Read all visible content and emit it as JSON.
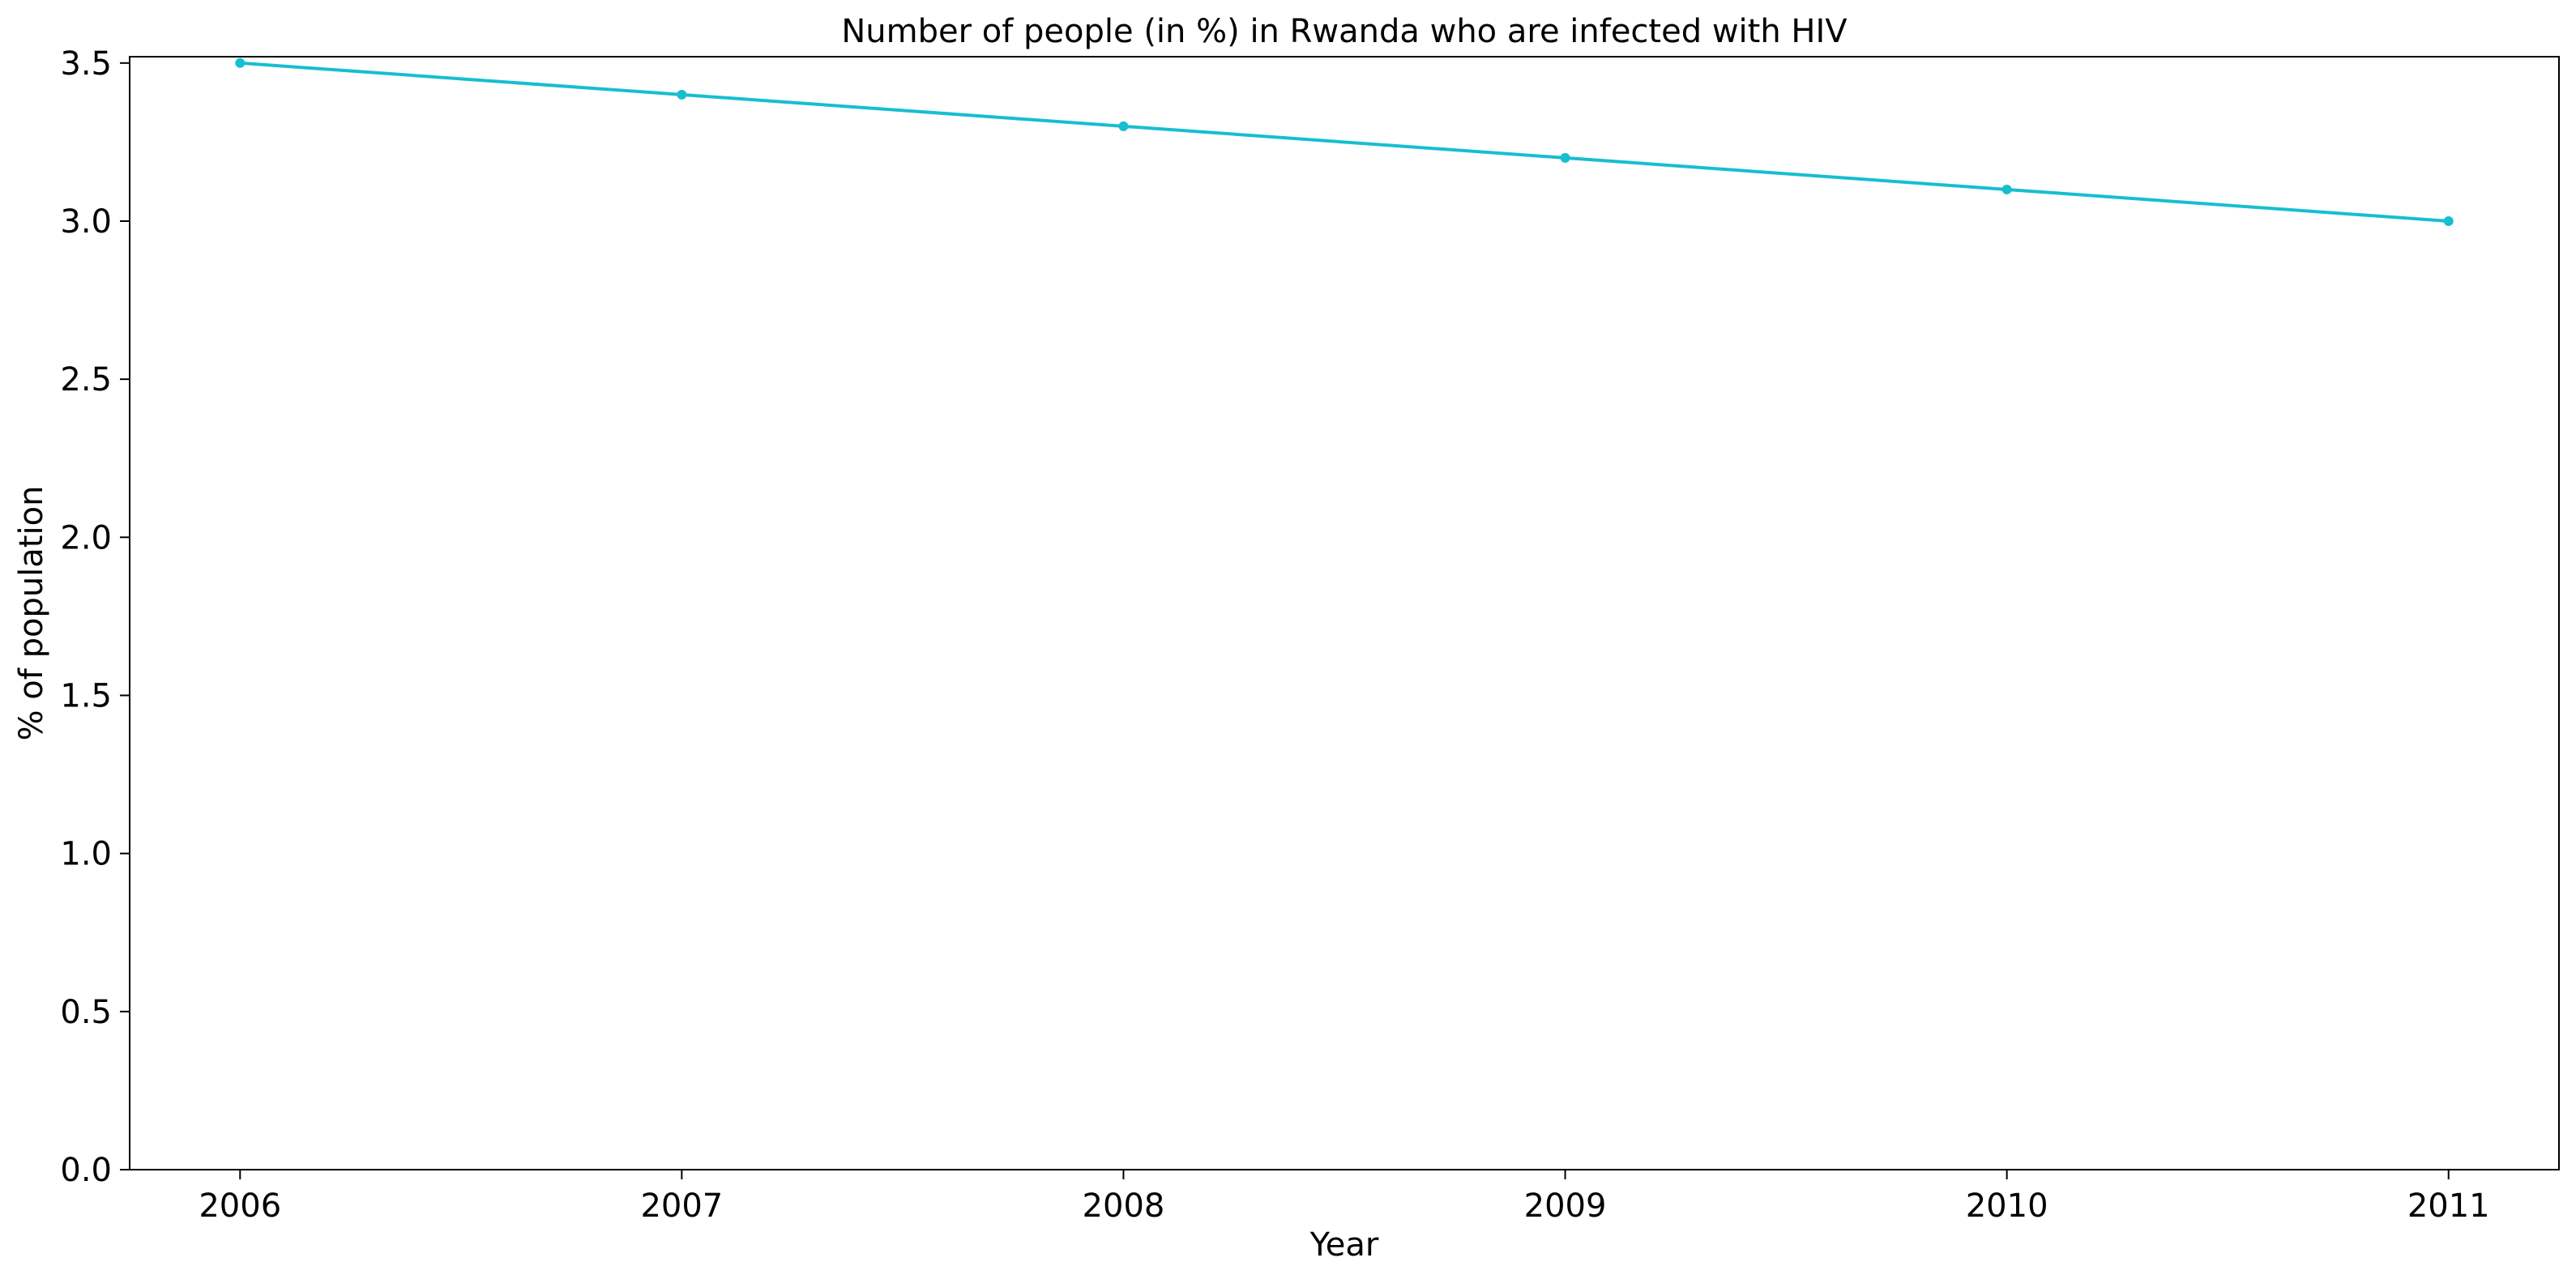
{
  "chart_data": {
    "type": "line",
    "title": "Number of people (in %) in Rwanda who are infected with HIV",
    "xlabel": "Year",
    "ylabel": "% of population",
    "x": [
      2006,
      2007,
      2008,
      2009,
      2010,
      2011
    ],
    "series": [
      {
        "values": [
          3.5,
          3.4,
          3.3,
          3.2,
          3.1,
          3.0
        ],
        "color": "#17becf",
        "marker": "dot"
      }
    ],
    "xticks": [
      "2006",
      "2007",
      "2008",
      "2009",
      "2010",
      "2011"
    ],
    "yticks": [
      "0.0",
      "0.5",
      "1.0",
      "1.5",
      "2.0",
      "2.5",
      "3.0",
      "3.5"
    ],
    "ylim": [
      0,
      3.52
    ],
    "xlim": [
      2005.75,
      2011.25
    ],
    "grid": false,
    "legend": "none"
  }
}
